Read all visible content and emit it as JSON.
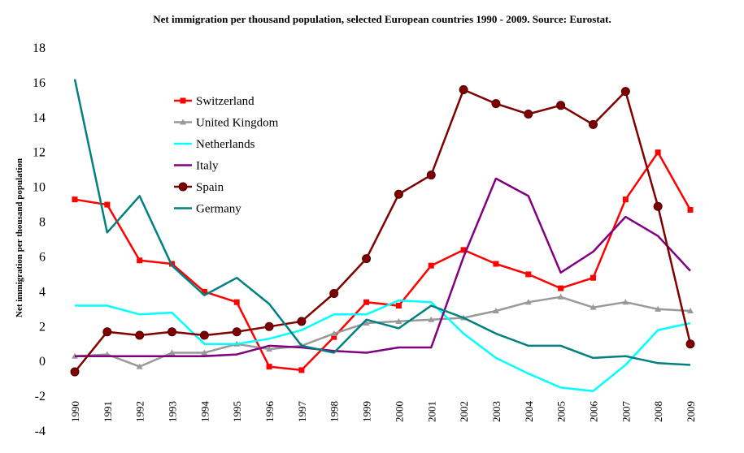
{
  "chart_data": {
    "type": "line",
    "title": "Net immigration  per thousand population,  selected European countries 1990 - 2009. Source: Eurostat.",
    "xlabel": "",
    "ylabel": "Net immigration per thousand population",
    "ylim": [
      -4,
      18
    ],
    "yticks": [
      "18",
      "16",
      "14",
      "12",
      "10",
      "8",
      "6",
      "4",
      "2",
      "0",
      "-2",
      "-4"
    ],
    "ytick_values": [
      18,
      16,
      14,
      12,
      10,
      8,
      6,
      4,
      2,
      0,
      -2,
      -4
    ],
    "categories": [
      "1990",
      "1991",
      "1992",
      "1993",
      "1994",
      "1995",
      "1996",
      "1997",
      "1998",
      "1999",
      "2000",
      "2001",
      "2002",
      "2003",
      "2004",
      "2005",
      "2006",
      "2007",
      "2008",
      "2009"
    ],
    "grid": false,
    "legend_position": "top-left",
    "series": [
      {
        "name": "Switzerland",
        "color": "#ff0000",
        "marker": "square",
        "values": [
          9.3,
          9.0,
          5.8,
          5.6,
          4.0,
          3.4,
          -0.3,
          -0.5,
          1.4,
          3.4,
          3.2,
          5.5,
          6.4,
          5.6,
          5.0,
          4.2,
          4.8,
          9.3,
          12.0,
          8.7
        ]
      },
      {
        "name": "United Kingdom",
        "color": "#999999",
        "marker": "triangle",
        "values": [
          0.3,
          0.4,
          -0.3,
          0.5,
          0.5,
          1.0,
          0.7,
          0.9,
          1.6,
          2.2,
          2.3,
          2.4,
          2.5,
          2.9,
          3.4,
          3.7,
          3.1,
          3.4,
          3.0,
          2.9
        ]
      },
      {
        "name": "Netherlands",
        "color": "#00ffff",
        "marker": "none",
        "values": [
          3.2,
          3.2,
          2.7,
          2.8,
          1.0,
          1.0,
          1.3,
          1.8,
          2.7,
          2.7,
          3.5,
          3.4,
          1.6,
          0.2,
          -0.7,
          -1.5,
          -1.7,
          -0.2,
          1.8,
          2.2
        ]
      },
      {
        "name": "Italy",
        "color": "#800080",
        "marker": "none",
        "values": [
          0.3,
          0.3,
          0.3,
          0.3,
          0.3,
          0.4,
          0.9,
          0.8,
          0.6,
          0.5,
          0.8,
          0.8,
          6.0,
          10.5,
          9.5,
          5.1,
          6.3,
          8.3,
          7.2,
          5.2
        ]
      },
      {
        "name": "Spain",
        "color": "#800000",
        "marker": "circle",
        "values": [
          -0.6,
          1.7,
          1.5,
          1.7,
          1.5,
          1.7,
          2.0,
          2.3,
          3.9,
          5.9,
          9.6,
          10.7,
          15.6,
          14.8,
          14.2,
          14.7,
          13.6,
          15.5,
          8.9,
          1.0
        ]
      },
      {
        "name": "Germany",
        "color": "#008080",
        "marker": "none",
        "values": [
          16.2,
          7.4,
          9.5,
          5.5,
          3.8,
          4.8,
          3.3,
          0.9,
          0.5,
          2.4,
          1.9,
          3.2,
          2.5,
          1.6,
          0.9,
          0.9,
          0.2,
          0.3,
          -0.1,
          -0.2
        ]
      }
    ]
  }
}
